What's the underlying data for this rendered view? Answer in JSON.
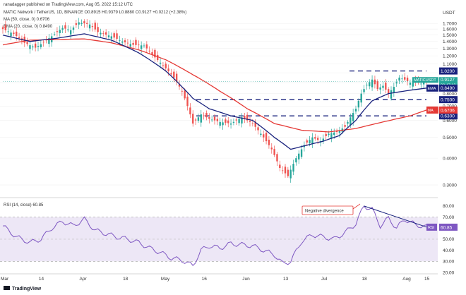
{
  "header": {
    "line1": "ranadagger published on TradingView.com, Aug 05, 2022 15:12 UTC",
    "line2": "MATIC Network / TetherUS, 1D, BINANCE  O0.8915  H0.9379  L0.8880  C0.9127  +0.0212 (+2.38%)",
    "line3": "MA (50, close, 0)  0.6706",
    "line4": "EMA (20, close, 0)  0.8490"
  },
  "price_axis_unit": "USDT",
  "rsi_label": "RSI (14, close)  60.85",
  "footer_logo": "TradingView",
  "annotation": "Negative divergence",
  "colors": {
    "up": "#26a69a",
    "down": "#ef5350",
    "ema": "#1a237e",
    "ma": "#e53935",
    "rsi": "#7e57c2",
    "dashed": "#1a237e",
    "rsi_band": "#ede7f6"
  },
  "chart_data": {
    "type": "candlestick",
    "price_scale": "log",
    "price_range": [
      0.27,
      1.85
    ],
    "x_tick_labels": [
      "Mar",
      "14",
      "Apr",
      "18",
      "May",
      "16",
      "Jun",
      "13",
      "Jul",
      "18",
      "Aug",
      "15"
    ],
    "price_ticks": [
      "1.7000",
      "1.6000",
      "1.5000",
      "1.4000",
      "1.3000",
      "1.2000",
      "1.1000",
      "1.0000",
      "0.9000",
      "0.8000",
      "0.7000",
      "0.6000",
      "0.5000",
      "0.4000",
      "0.3000"
    ],
    "price_tick_values": [
      1.7,
      1.6,
      1.5,
      1.4,
      1.3,
      1.2,
      1.1,
      1.0,
      0.9,
      0.8,
      0.7,
      0.6,
      0.5,
      0.4,
      0.3
    ],
    "levels": [
      {
        "label": "1.0200",
        "value": 1.02
      },
      {
        "label": "0.7500",
        "value": 0.75
      },
      {
        "label": "0.6300",
        "value": 0.63
      }
    ],
    "current": {
      "label": "MATICUSDT",
      "price": "0.9127",
      "timer": "08:47:12",
      "value": 0.9127
    },
    "ema": {
      "tag": "EMA",
      "label": "0.8490",
      "value": 0.849
    },
    "ma": {
      "tag": "MA",
      "label": "0.6706",
      "value": 0.6706
    },
    "close_path": [
      [
        0,
        1.6
      ],
      [
        4,
        1.52
      ],
      [
        8,
        1.38
      ],
      [
        12,
        1.31
      ],
      [
        14,
        1.36
      ],
      [
        18,
        1.48
      ],
      [
        22,
        1.62
      ],
      [
        25,
        1.58
      ],
      [
        28,
        1.72
      ],
      [
        32,
        1.68
      ],
      [
        35,
        1.55
      ],
      [
        40,
        1.48
      ],
      [
        44,
        1.4
      ],
      [
        48,
        1.35
      ],
      [
        52,
        1.34
      ],
      [
        56,
        1.18
      ],
      [
        60,
        1.05
      ],
      [
        63,
        0.95
      ],
      [
        66,
        0.82
      ],
      [
        68,
        0.7
      ],
      [
        70,
        0.58
      ],
      [
        73,
        0.64
      ],
      [
        76,
        0.61
      ],
      [
        80,
        0.59
      ],
      [
        84,
        0.58
      ],
      [
        88,
        0.62
      ],
      [
        92,
        0.58
      ],
      [
        96,
        0.5
      ],
      [
        99,
        0.44
      ],
      [
        102,
        0.36
      ],
      [
        105,
        0.33
      ],
      [
        108,
        0.4
      ],
      [
        111,
        0.46
      ],
      [
        114,
        0.5
      ],
      [
        117,
        0.48
      ],
      [
        120,
        0.52
      ],
      [
        123,
        0.53
      ],
      [
        126,
        0.56
      ],
      [
        128,
        0.62
      ],
      [
        130,
        0.68
      ],
      [
        132,
        0.8
      ],
      [
        134,
        0.88
      ],
      [
        136,
        0.93
      ],
      [
        138,
        0.84
      ],
      [
        140,
        0.87
      ],
      [
        142,
        0.8
      ],
      [
        144,
        0.86
      ],
      [
        146,
        0.95
      ],
      [
        148,
        0.93
      ],
      [
        150,
        0.9
      ],
      [
        152,
        0.91
      ],
      [
        154,
        0.89
      ],
      [
        156,
        0.9127
      ]
    ],
    "ema_path": [
      [
        0,
        1.5
      ],
      [
        10,
        1.4
      ],
      [
        20,
        1.45
      ],
      [
        30,
        1.52
      ],
      [
        40,
        1.42
      ],
      [
        50,
        1.24
      ],
      [
        60,
        1.02
      ],
      [
        66,
        0.86
      ],
      [
        70,
        0.76
      ],
      [
        76,
        0.68
      ],
      [
        84,
        0.63
      ],
      [
        92,
        0.6
      ],
      [
        100,
        0.5
      ],
      [
        106,
        0.44
      ],
      [
        112,
        0.46
      ],
      [
        118,
        0.48
      ],
      [
        124,
        0.51
      ],
      [
        130,
        0.6
      ],
      [
        136,
        0.74
      ],
      [
        142,
        0.8
      ],
      [
        150,
        0.83
      ],
      [
        156,
        0.849
      ]
    ],
    "ma_path": [
      [
        0,
        1.35
      ],
      [
        10,
        1.42
      ],
      [
        20,
        1.43
      ],
      [
        30,
        1.44
      ],
      [
        40,
        1.38
      ],
      [
        50,
        1.28
      ],
      [
        60,
        1.15
      ],
      [
        70,
        0.98
      ],
      [
        80,
        0.82
      ],
      [
        90,
        0.68
      ],
      [
        100,
        0.58
      ],
      [
        110,
        0.54
      ],
      [
        120,
        0.53
      ],
      [
        130,
        0.55
      ],
      [
        140,
        0.59
      ],
      [
        150,
        0.63
      ],
      [
        156,
        0.6706
      ]
    ],
    "rsi": {
      "range": [
        20,
        85
      ],
      "ticks": [
        "80.00",
        "70.00",
        "60.00",
        "50.00",
        "40.00",
        "30.00",
        "20.00"
      ],
      "tick_values": [
        80,
        70,
        60,
        50,
        40,
        30,
        20
      ],
      "band": [
        30,
        70
      ],
      "value_label": "60.85",
      "path": [
        [
          0,
          62
        ],
        [
          5,
          52
        ],
        [
          10,
          47
        ],
        [
          14,
          50
        ],
        [
          18,
          60
        ],
        [
          22,
          66
        ],
        [
          26,
          62
        ],
        [
          30,
          68
        ],
        [
          34,
          58
        ],
        [
          38,
          55
        ],
        [
          42,
          52
        ],
        [
          46,
          50
        ],
        [
          50,
          47
        ],
        [
          54,
          42
        ],
        [
          58,
          38
        ],
        [
          62,
          33
        ],
        [
          66,
          31
        ],
        [
          70,
          26
        ],
        [
          73,
          40
        ],
        [
          76,
          44
        ],
        [
          80,
          42
        ],
        [
          84,
          46
        ],
        [
          88,
          45
        ],
        [
          92,
          44
        ],
        [
          96,
          40
        ],
        [
          100,
          36
        ],
        [
          103,
          28
        ],
        [
          106,
          30
        ],
        [
          110,
          48
        ],
        [
          114,
          54
        ],
        [
          118,
          52
        ],
        [
          122,
          50
        ],
        [
          126,
          56
        ],
        [
          130,
          64
        ],
        [
          133,
          80
        ],
        [
          136,
          77
        ],
        [
          139,
          62
        ],
        [
          142,
          69
        ],
        [
          145,
          60
        ],
        [
          148,
          68
        ],
        [
          152,
          63
        ],
        [
          156,
          60.85
        ]
      ]
    }
  }
}
